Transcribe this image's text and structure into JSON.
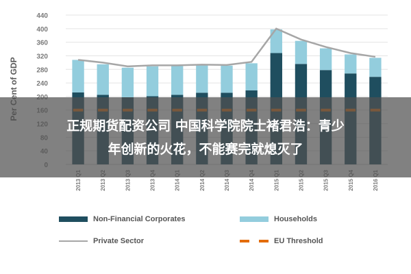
{
  "chart_data": {
    "type": "bar",
    "ylabel": "Per Cent of GDP",
    "ylim": [
      0,
      440
    ],
    "yticks": [
      0,
      40,
      80,
      120,
      160,
      200,
      240,
      280,
      320,
      360,
      400,
      440
    ],
    "grid": true,
    "legend_position": "bottom",
    "categories": [
      "2013 Q1",
      "2013 Q2",
      "2013 Q3",
      "2013 Q4",
      "2014 Q1",
      "2014 Q2",
      "2014 Q3",
      "2014 Q4",
      "2015 Q1",
      "2015 Q2",
      "2015 Q3",
      "2015 Q4",
      "2016 Q1"
    ],
    "series": [
      {
        "name": "Non-Financial Corporates",
        "kind": "bar",
        "stack": "total",
        "color": "#1f4e5f",
        "values": [
          212,
          205,
          198,
          201,
          205,
          211,
          211,
          218,
          328,
          296,
          278,
          268,
          258
        ]
      },
      {
        "name": "Households",
        "kind": "bar",
        "stack": "total",
        "color": "#93cddd",
        "values": [
          96,
          90,
          87,
          88,
          85,
          82,
          80,
          80,
          70,
          68,
          64,
          56,
          56
        ]
      },
      {
        "name": "Private Sector",
        "kind": "line",
        "color": "#a6a6a6",
        "values": [
          308,
          300,
          289,
          292,
          292,
          294,
          293,
          302,
          400,
          368,
          346,
          328,
          317
        ]
      },
      {
        "name": "EU Threshold",
        "kind": "dashed",
        "color": "#e36c0a",
        "values": [
          160,
          160,
          160,
          160,
          160,
          160,
          160,
          160,
          160,
          160,
          160,
          160,
          160
        ]
      }
    ]
  },
  "overlay": {
    "line1": "正规期货配资公司 中国科学院院士褚君浩：青少",
    "line2": "年创新的火花，不能赛完就熄灭了"
  }
}
